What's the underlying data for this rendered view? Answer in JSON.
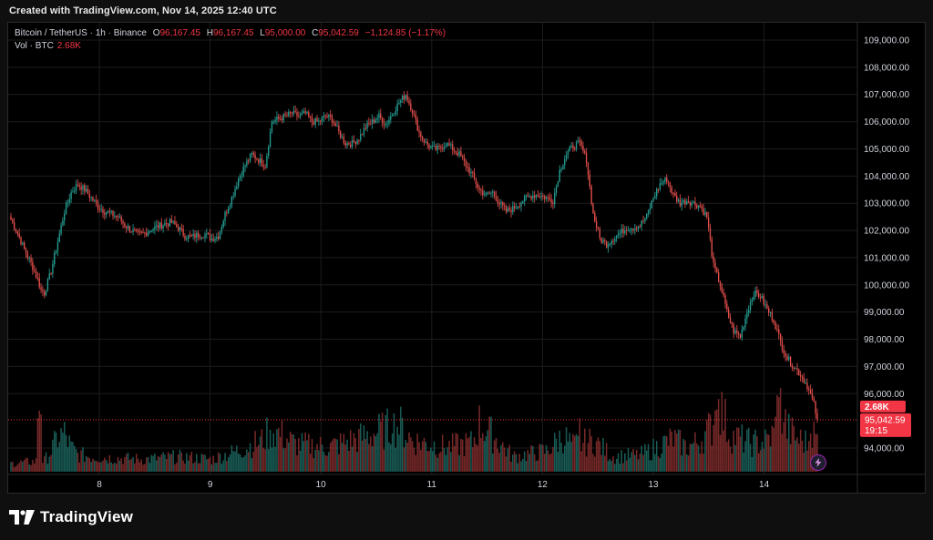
{
  "watermark": {
    "created": "Created with TradingView.com, Nov 14, 2025 12:40 UTC"
  },
  "legend": {
    "symbol": "Bitcoin / TetherUS",
    "interval": "1h",
    "exchange": "Binance",
    "o_label": "O",
    "o": "96,167.45",
    "h_label": "H",
    "h": "96,167.45",
    "l_label": "L",
    "l": "95,000.00",
    "c_label": "C",
    "c": "95,042.59",
    "change": "−1,124.85 (−1.17%)",
    "vol_label": "Vol · BTC",
    "vol_value": "2.68K"
  },
  "logo": {
    "text": "TradingView"
  },
  "colors": {
    "up": "#26a69a",
    "down": "#ef5350",
    "vol_up": "#1a5e58",
    "vol_down": "#7a2a2a",
    "background": "#000000",
    "grid": "#1c1c1c",
    "axis_text": "#d1d4dc",
    "last_price_bg": "#f23645",
    "volume_tag_bg": "#f23645"
  },
  "icons": {
    "logo": "tradingview-logo-icon",
    "replay": "lightning-bolt-icon"
  },
  "chart_data": {
    "type": "candlestick",
    "symbol": "Bitcoin / TetherUS",
    "interval": "1h",
    "y_axis": {
      "ticks": [
        "109,000.00",
        "108,000.00",
        "107,000.00",
        "106,000.00",
        "105,000.00",
        "104,000.00",
        "103,000.00",
        "102,000.00",
        "101,000.00",
        "100,000.00",
        "99,000.00",
        "98,000.00",
        "97,000.00",
        "96,000.00",
        "94,000.00"
      ],
      "range": [
        93000,
        109500
      ]
    },
    "x_axis": {
      "ticks": [
        "8",
        "9",
        "10",
        "11",
        "12",
        "13",
        "14"
      ]
    },
    "last_price": "95,042.59",
    "countdown": "19:15",
    "volume_tag": "2.68K",
    "anchors": [
      [
        0,
        102400
      ],
      [
        4,
        101900
      ],
      [
        8,
        101300
      ],
      [
        12,
        100800
      ],
      [
        16,
        100200
      ],
      [
        18,
        99800
      ],
      [
        20,
        99700
      ],
      [
        24,
        100500
      ],
      [
        28,
        101600
      ],
      [
        32,
        102700
      ],
      [
        36,
        103400
      ],
      [
        40,
        103700
      ],
      [
        44,
        103500
      ],
      [
        48,
        103200
      ],
      [
        52,
        102900
      ],
      [
        56,
        102700
      ],
      [
        60,
        102600
      ],
      [
        64,
        102500
      ],
      [
        68,
        102200
      ],
      [
        72,
        102000
      ],
      [
        76,
        101850
      ],
      [
        80,
        101900
      ],
      [
        84,
        102050
      ],
      [
        88,
        102150
      ],
      [
        92,
        102250
      ],
      [
        96,
        102300
      ],
      [
        100,
        102100
      ],
      [
        104,
        101800
      ],
      [
        108,
        101750
      ],
      [
        112,
        101850
      ],
      [
        116,
        101850
      ],
      [
        120,
        101700
      ],
      [
        124,
        101800
      ],
      [
        128,
        102600
      ],
      [
        132,
        103200
      ],
      [
        136,
        103900
      ],
      [
        140,
        104400
      ],
      [
        144,
        104800
      ],
      [
        148,
        104600
      ],
      [
        152,
        104400
      ],
      [
        156,
        106000
      ],
      [
        160,
        106100
      ],
      [
        164,
        106200
      ],
      [
        168,
        106300
      ],
      [
        172,
        106200
      ],
      [
        176,
        106300
      ],
      [
        180,
        106000
      ],
      [
        184,
        106000
      ],
      [
        188,
        106200
      ],
      [
        192,
        106100
      ],
      [
        196,
        105600
      ],
      [
        200,
        105200
      ],
      [
        204,
        105200
      ],
      [
        208,
        105400
      ],
      [
        212,
        105800
      ],
      [
        216,
        106000
      ],
      [
        220,
        106200
      ],
      [
        224,
        105900
      ],
      [
        228,
        106300
      ],
      [
        232,
        106700
      ],
      [
        236,
        107000
      ],
      [
        240,
        106400
      ],
      [
        244,
        105600
      ],
      [
        248,
        105200
      ],
      [
        252,
        105000
      ],
      [
        256,
        105000
      ],
      [
        260,
        105200
      ],
      [
        264,
        105000
      ],
      [
        268,
        104800
      ],
      [
        272,
        104400
      ],
      [
        276,
        104000
      ],
      [
        280,
        103500
      ],
      [
        284,
        103300
      ],
      [
        288,
        103400
      ],
      [
        292,
        103000
      ],
      [
        296,
        102700
      ],
      [
        300,
        102800
      ],
      [
        304,
        103000
      ],
      [
        308,
        103200
      ],
      [
        312,
        103300
      ],
      [
        316,
        103300
      ],
      [
        320,
        103200
      ],
      [
        324,
        103100
      ],
      [
        328,
        104200
      ],
      [
        332,
        104800
      ],
      [
        336,
        105100
      ],
      [
        340,
        105200
      ],
      [
        344,
        104600
      ],
      [
        348,
        102600
      ],
      [
        352,
        101700
      ],
      [
        356,
        101500
      ],
      [
        360,
        101700
      ],
      [
        364,
        101900
      ],
      [
        368,
        102100
      ],
      [
        372,
        102100
      ],
      [
        376,
        102200
      ],
      [
        380,
        102500
      ],
      [
        384,
        103200
      ],
      [
        388,
        103700
      ],
      [
        392,
        103900
      ],
      [
        396,
        103300
      ],
      [
        400,
        103000
      ],
      [
        404,
        103100
      ],
      [
        408,
        103000
      ],
      [
        412,
        102900
      ],
      [
        416,
        102500
      ],
      [
        420,
        100700
      ],
      [
        424,
        100000
      ],
      [
        428,
        99000
      ],
      [
        432,
        98300
      ],
      [
        436,
        98100
      ],
      [
        440,
        99000
      ],
      [
        444,
        99700
      ],
      [
        448,
        99600
      ],
      [
        452,
        99100
      ],
      [
        456,
        98700
      ],
      [
        460,
        97900
      ],
      [
        464,
        97300
      ],
      [
        468,
        97000
      ],
      [
        472,
        96700
      ],
      [
        476,
        96300
      ],
      [
        480,
        95600
      ],
      [
        482,
        95042
      ]
    ],
    "volume_profile": [
      [
        0,
        12
      ],
      [
        20,
        16
      ],
      [
        24,
        30
      ],
      [
        28,
        50
      ],
      [
        32,
        55
      ],
      [
        36,
        35
      ],
      [
        40,
        25
      ],
      [
        48,
        22
      ],
      [
        60,
        20
      ],
      [
        80,
        18
      ],
      [
        100,
        22
      ],
      [
        120,
        18
      ],
      [
        135,
        30
      ],
      [
        150,
        45
      ],
      [
        156,
        62
      ],
      [
        170,
        40
      ],
      [
        190,
        36
      ],
      [
        210,
        50
      ],
      [
        216,
        55
      ],
      [
        232,
        68
      ],
      [
        240,
        45
      ],
      [
        260,
        36
      ],
      [
        276,
        42
      ],
      [
        280,
        70
      ],
      [
        284,
        62
      ],
      [
        300,
        22
      ],
      [
        320,
        30
      ],
      [
        330,
        52
      ],
      [
        336,
        38
      ],
      [
        348,
        45
      ],
      [
        360,
        22
      ],
      [
        376,
        24
      ],
      [
        388,
        38
      ],
      [
        396,
        48
      ],
      [
        404,
        35
      ],
      [
        412,
        45
      ],
      [
        420,
        70
      ],
      [
        424,
        95
      ],
      [
        430,
        52
      ],
      [
        436,
        48
      ],
      [
        444,
        40
      ],
      [
        452,
        45
      ],
      [
        456,
        55
      ],
      [
        460,
        95
      ],
      [
        464,
        62
      ],
      [
        470,
        48
      ],
      [
        476,
        42
      ],
      [
        480,
        55
      ],
      [
        482,
        45
      ]
    ],
    "volume_spikes": [
      [
        16,
        70
      ],
      [
        17,
        80
      ],
      [
        18,
        75
      ],
      [
        102,
        25
      ],
      [
        155,
        55
      ],
      [
        228,
        50
      ],
      [
        340,
        70
      ],
      [
        352,
        40
      ],
      [
        421,
        80
      ],
      [
        423,
        95
      ],
      [
        445,
        55
      ],
      [
        458,
        100
      ],
      [
        462,
        65
      ],
      [
        478,
        50
      ]
    ]
  }
}
